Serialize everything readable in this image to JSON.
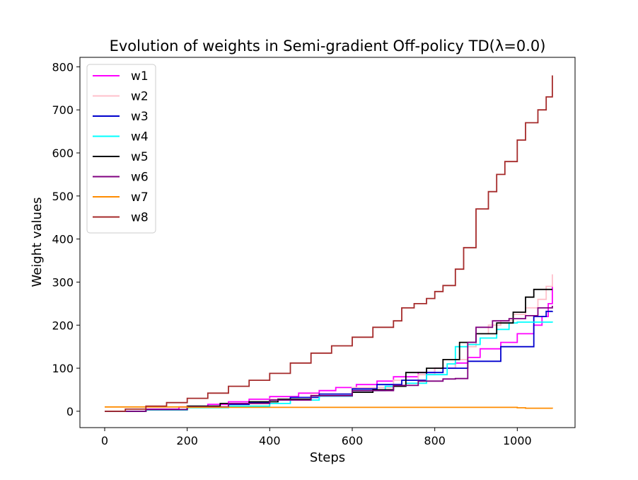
{
  "chart_data": {
    "type": "line",
    "title": "Evolution of weights in Semi-gradient Off-policy TD(λ=0.0)",
    "xlabel": "Steps",
    "ylabel": "Weight values",
    "xlim": [
      -60,
      1140
    ],
    "ylim": [
      -38,
      822
    ],
    "xticks": [
      0,
      200,
      400,
      600,
      800,
      1000
    ],
    "yticks": [
      0,
      100,
      200,
      300,
      400,
      500,
      600,
      700,
      800
    ],
    "grid": false,
    "legend_position": "top-left",
    "series": [
      {
        "name": "w1",
        "color": "#ff00ff",
        "x": [
          0,
          100,
          180,
          250,
          300,
          350,
          400,
          470,
          520,
          560,
          610,
          660,
          700,
          760,
          800,
          850,
          880,
          910,
          960,
          1000,
          1040,
          1060,
          1075,
          1085
        ],
        "y": [
          0,
          5,
          10,
          16,
          22,
          28,
          34,
          42,
          48,
          55,
          62,
          70,
          80,
          90,
          100,
          112,
          125,
          145,
          160,
          180,
          200,
          220,
          250,
          290
        ]
      },
      {
        "name": "w2",
        "color": "#ffc0cb",
        "x": [
          0,
          100,
          200,
          300,
          400,
          500,
          600,
          700,
          760,
          800,
          850,
          880,
          900,
          930,
          960,
          990,
          1020,
          1050,
          1070,
          1085
        ],
        "y": [
          0,
          4,
          10,
          18,
          28,
          40,
          55,
          72,
          85,
          100,
          120,
          150,
          180,
          200,
          210,
          225,
          240,
          260,
          290,
          318
        ]
      },
      {
        "name": "w3",
        "color": "#0000cd",
        "x": [
          0,
          100,
          200,
          300,
          350,
          400,
          450,
          520,
          600,
          660,
          720,
          780,
          820,
          880,
          960,
          1040,
          1070,
          1085
        ],
        "y": [
          0,
          4,
          10,
          16,
          20,
          26,
          32,
          40,
          52,
          62,
          72,
          90,
          100,
          116,
          150,
          220,
          232,
          233
        ]
      },
      {
        "name": "w4",
        "color": "#00ffff",
        "x": [
          0,
          100,
          200,
          300,
          400,
          450,
          520,
          600,
          680,
          730,
          780,
          830,
          850,
          880,
          910,
          950,
          980,
          1000,
          1020,
          1085
        ],
        "y": [
          0,
          3,
          8,
          12,
          18,
          26,
          35,
          48,
          58,
          65,
          85,
          110,
          150,
          155,
          170,
          190,
          205,
          207,
          207,
          206
        ]
      },
      {
        "name": "w5",
        "color": "#000000",
        "x": [
          0,
          100,
          200,
          280,
          350,
          420,
          500,
          600,
          650,
          700,
          730,
          780,
          820,
          860,
          900,
          950,
          990,
          1020,
          1040,
          1085
        ],
        "y": [
          0,
          4,
          12,
          18,
          22,
          28,
          36,
          44,
          50,
          58,
          90,
          100,
          120,
          160,
          180,
          205,
          230,
          265,
          283,
          283
        ]
      },
      {
        "name": "w6",
        "color": "#800080",
        "x": [
          0,
          100,
          200,
          300,
          400,
          500,
          600,
          700,
          760,
          820,
          850,
          880,
          900,
          940,
          980,
          1020,
          1050,
          1085
        ],
        "y": [
          0,
          4,
          10,
          18,
          26,
          36,
          48,
          60,
          70,
          75,
          76,
          160,
          195,
          210,
          215,
          222,
          240,
          245
        ]
      },
      {
        "name": "w7",
        "color": "#ff8c00",
        "x": [
          0,
          100,
          200,
          300,
          400,
          500,
          600,
          700,
          800,
          900,
          1000,
          1020,
          1085
        ],
        "y": [
          10,
          10,
          9,
          9,
          9,
          9,
          9,
          9,
          9,
          9,
          8,
          7,
          6
        ]
      },
      {
        "name": "w8",
        "color": "#a52a2a",
        "x": [
          0,
          50,
          100,
          150,
          200,
          250,
          300,
          350,
          400,
          450,
          500,
          550,
          600,
          650,
          700,
          720,
          750,
          780,
          800,
          820,
          850,
          870,
          900,
          930,
          950,
          970,
          1000,
          1020,
          1050,
          1070,
          1085
        ],
        "y": [
          0,
          5,
          12,
          20,
          30,
          42,
          58,
          72,
          88,
          112,
          135,
          152,
          172,
          195,
          210,
          240,
          250,
          262,
          278,
          292,
          330,
          380,
          470,
          510,
          550,
          580,
          630,
          670,
          700,
          730,
          780
        ]
      }
    ]
  }
}
